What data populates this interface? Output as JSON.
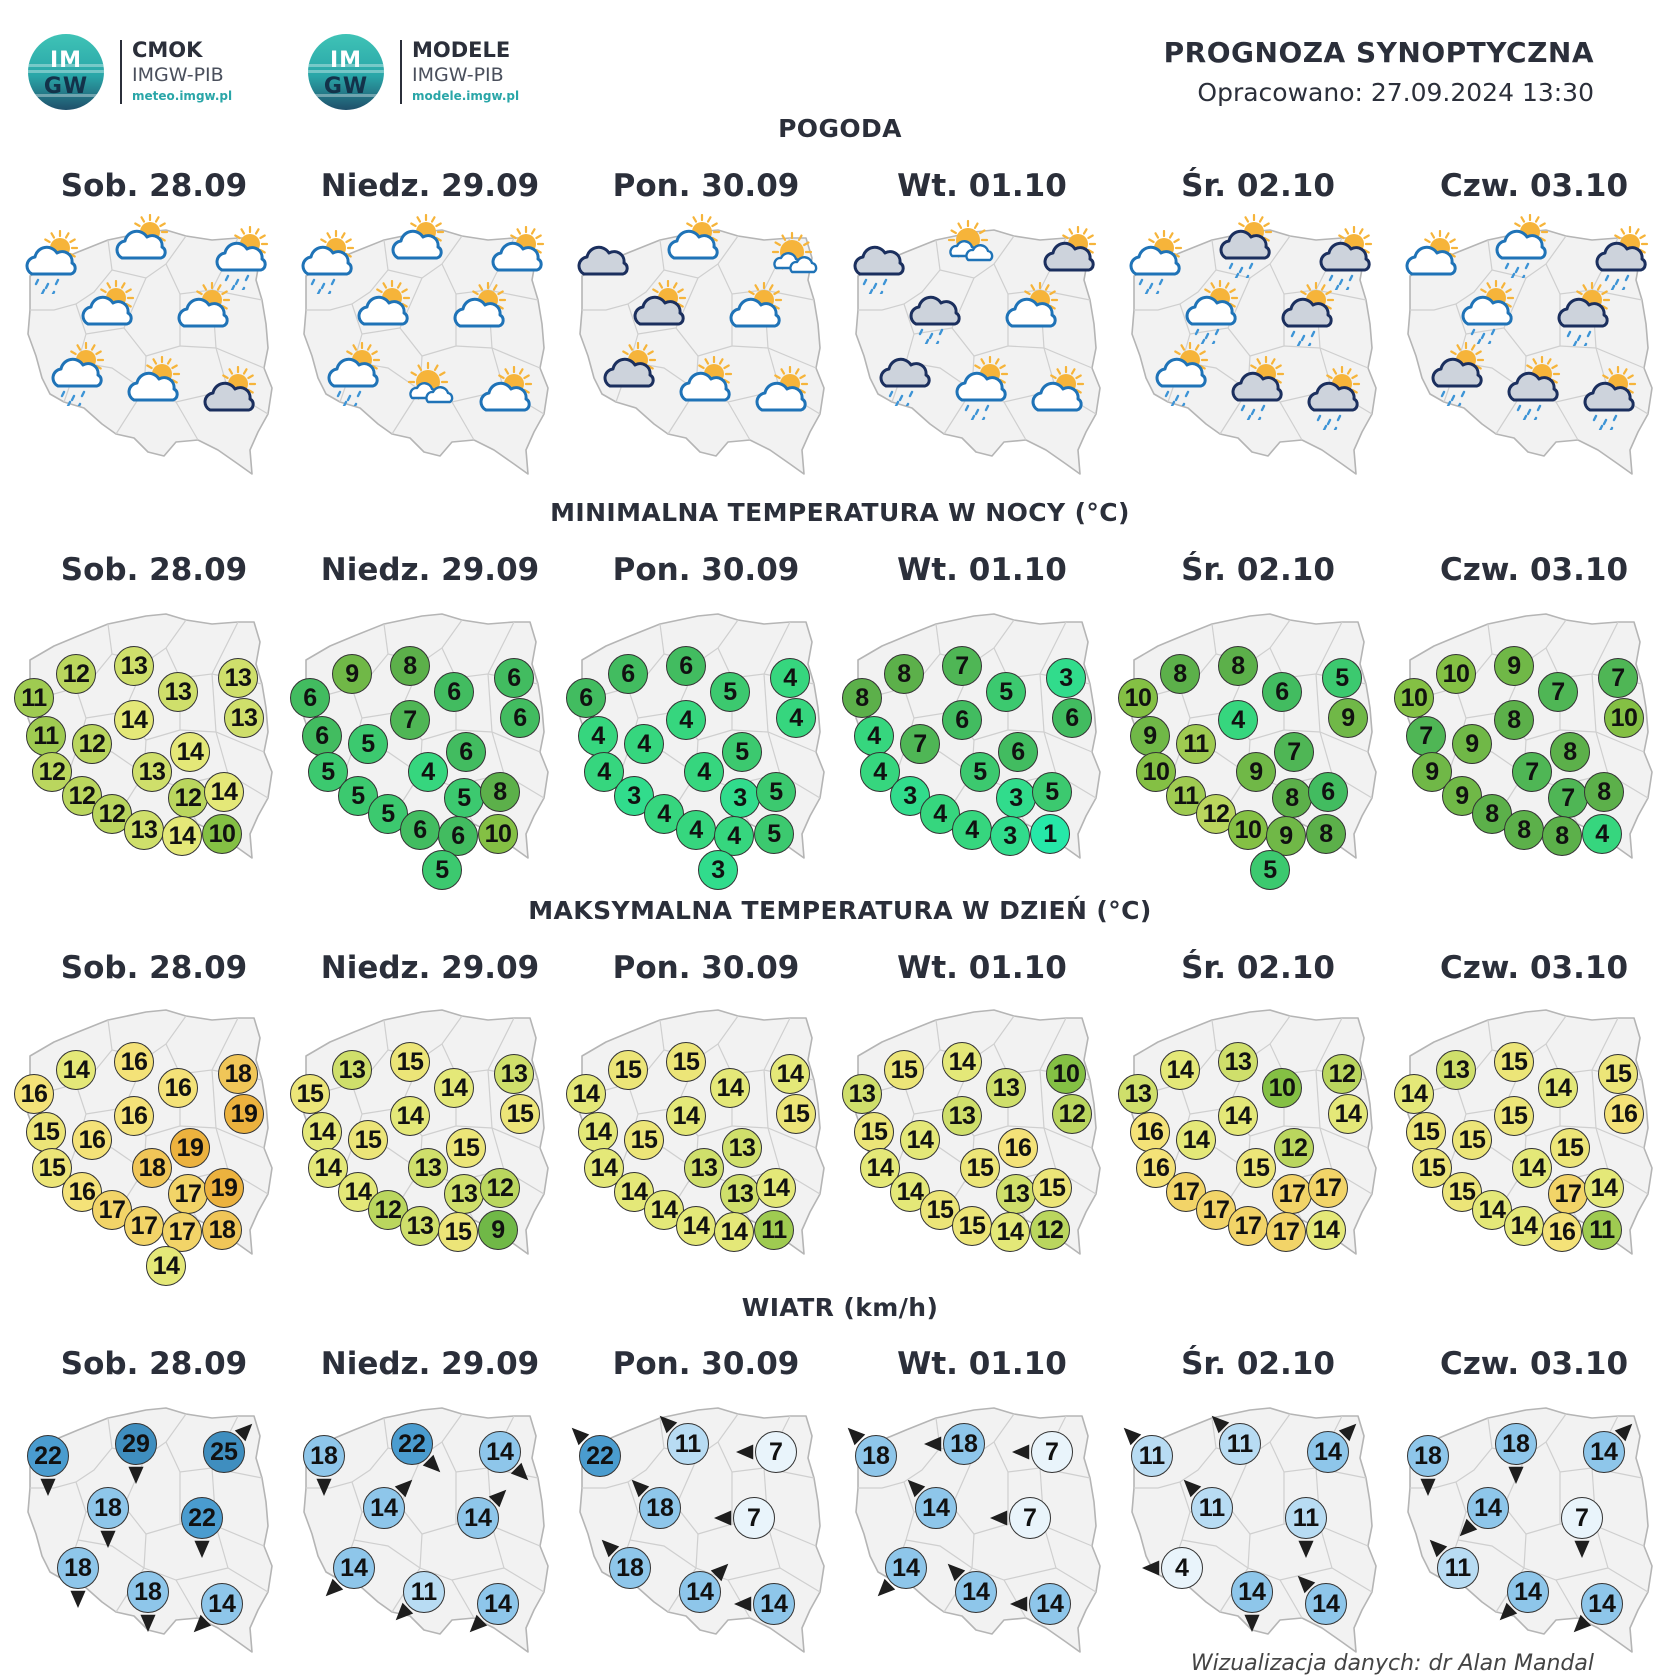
{
  "logos": [
    {
      "circle_top": "IM",
      "circle_bottom": "GW",
      "name": "CMOK",
      "sub": "IMGW-PIB",
      "url": "meteo.imgw.pl"
    },
    {
      "circle_top": "IM",
      "circle_bottom": "GW",
      "name": "MODELE",
      "sub": "IMGW-PIB",
      "url": "modele.imgw.pl"
    }
  ],
  "header": {
    "title": "PROGNOZA SYNOPTYCZNA",
    "subtitle": "Opracowano: 27.09.2024 13:30"
  },
  "days": [
    "Sob. 28.09",
    "Niedz. 29.09",
    "Pon. 30.09",
    "Wt. 01.10",
    "Śr. 02.10",
    "Czw. 03.10"
  ],
  "sections": {
    "weather_title": "POGODA",
    "min_title": "MINIMALNA TEMPERATURA W NOCY (°C)",
    "max_title": "MAKSYMALNA TEMPERATURA W DZIEŃ (°C)",
    "wind_title": "WIATR (km/h)"
  },
  "colors": {
    "map_fill": "#f2f2f2",
    "map_border": "#b5b5b5",
    "cloud_light_stroke": "#1f73b7",
    "cloud_dark_fill": "#cdd3dc",
    "cloud_dark_stroke": "#1b2f5e",
    "sun": "#f6b43a",
    "rain": "#3d94d6"
  },
  "weather": [
    [
      "sun-cloud-rain-icon",
      "sun-cloud-icon",
      "sun-cloud-rain-icon",
      "sun-cloud-icon",
      "sun-cloud-icon",
      "sun-cloud-rain-icon",
      "sun-cloud-icon",
      "dark-sun-cloud-icon"
    ],
    [
      "sun-cloud-rain-icon",
      "sun-cloud-icon",
      "sun-cloud-icon",
      "sun-cloud-icon",
      "sun-cloud-icon",
      "sun-cloud-rain-icon",
      "sun-small-clouds-icon",
      "sun-cloud-icon"
    ],
    [
      "dark-cloud-icon",
      "sun-cloud-icon",
      "sun-small-clouds-icon",
      "dark-sun-cloud-icon",
      "sun-cloud-icon",
      "dark-sun-cloud-icon",
      "sun-cloud-icon",
      "sun-cloud-icon"
    ],
    [
      "dark-cloud-rain-icon",
      "sun-small-clouds-icon",
      "dark-sun-cloud-icon",
      "dark-cloud-rain-icon",
      "sun-cloud-icon",
      "dark-cloud-rain-icon",
      "sun-cloud-rain-icon",
      "sun-cloud-icon"
    ],
    [
      "sun-cloud-rain-icon",
      "dark-sun-cloud-rain-icon",
      "dark-sun-cloud-rain-icon",
      "sun-cloud-rain-icon",
      "dark-sun-cloud-rain-icon",
      "sun-cloud-rain-icon",
      "dark-sun-cloud-rain-icon",
      "dark-sun-cloud-rain-icon"
    ],
    [
      "sun-cloud-icon",
      "sun-cloud-rain-icon",
      "dark-sun-cloud-rain-icon",
      "sun-cloud-rain-icon",
      "dark-sun-cloud-rain-icon",
      "dark-sun-cloud-rain-icon",
      "dark-sun-cloud-rain-icon",
      "dark-sun-cloud-rain-icon"
    ]
  ],
  "min_temp": [
    [
      11,
      12,
      13,
      13,
      13,
      13,
      14,
      11,
      12,
      14,
      12,
      13,
      12,
      12,
      14,
      12,
      13,
      14,
      10
    ],
    [
      6,
      9,
      8,
      6,
      6,
      6,
      7,
      6,
      5,
      6,
      5,
      4,
      5,
      5,
      8,
      5,
      6,
      6,
      10,
      5
    ],
    [
      6,
      6,
      6,
      5,
      4,
      4,
      4,
      4,
      4,
      5,
      4,
      4,
      3,
      3,
      5,
      4,
      4,
      4,
      5,
      3
    ],
    [
      8,
      8,
      7,
      5,
      3,
      6,
      6,
      4,
      7,
      6,
      4,
      5,
      3,
      3,
      5,
      4,
      4,
      3,
      1
    ],
    [
      10,
      8,
      8,
      6,
      5,
      9,
      4,
      9,
      11,
      7,
      10,
      9,
      11,
      8,
      6,
      12,
      10,
      9,
      8,
      5
    ],
    [
      10,
      10,
      9,
      7,
      7,
      10,
      8,
      7,
      9,
      8,
      9,
      7,
      9,
      7,
      8,
      8,
      8,
      8,
      4
    ]
  ],
  "max_temp": [
    [
      16,
      14,
      16,
      16,
      18,
      19,
      16,
      15,
      16,
      19,
      15,
      18,
      16,
      17,
      19,
      17,
      17,
      17,
      18,
      14
    ],
    [
      15,
      13,
      15,
      14,
      13,
      15,
      14,
      14,
      15,
      15,
      14,
      13,
      14,
      13,
      12,
      12,
      13,
      15,
      9
    ],
    [
      14,
      15,
      15,
      14,
      14,
      15,
      14,
      14,
      15,
      13,
      14,
      13,
      14,
      13,
      14,
      14,
      14,
      14,
      11
    ],
    [
      13,
      15,
      14,
      13,
      10,
      12,
      13,
      15,
      14,
      16,
      14,
      15,
      14,
      13,
      15,
      15,
      15,
      14,
      12
    ],
    [
      13,
      14,
      13,
      10,
      12,
      14,
      14,
      16,
      14,
      12,
      16,
      15,
      17,
      17,
      17,
      17,
      17,
      17,
      14
    ],
    [
      14,
      13,
      15,
      14,
      15,
      16,
      15,
      15,
      15,
      15,
      15,
      14,
      15,
      17,
      14,
      14,
      14,
      16,
      11
    ]
  ],
  "wind": [
    [
      22,
      29,
      25,
      18,
      22,
      18,
      18,
      14
    ],
    [
      18,
      22,
      14,
      14,
      14,
      14,
      11,
      14
    ],
    [
      22,
      11,
      7,
      18,
      7,
      18,
      14,
      14
    ],
    [
      18,
      18,
      7,
      14,
      7,
      14,
      14,
      14
    ],
    [
      11,
      11,
      14,
      11,
      11,
      4,
      14,
      14
    ],
    [
      18,
      18,
      14,
      14,
      7,
      11,
      14,
      14
    ]
  ],
  "credit": "Wizualizacja danych: dr Alan Mandal"
}
